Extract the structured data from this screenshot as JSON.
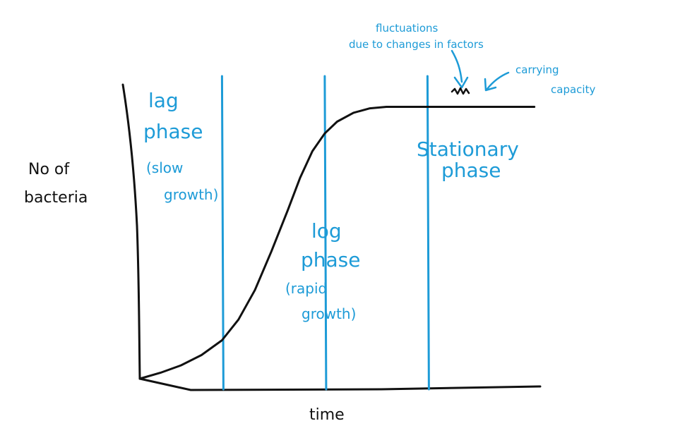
{
  "chart_data": {
    "type": "line",
    "title": "",
    "xlabel": "time",
    "ylabel_line1": "No of",
    "ylabel_line2": "bacteria",
    "grid": false,
    "x_range": [
      0,
      10
    ],
    "y_range": [
      0,
      10
    ],
    "series": [
      {
        "x": [
          0,
          0.5,
          1,
          1.5,
          2,
          2.4,
          2.8,
          3.2,
          3.6,
          3.9,
          4.2,
          4.5,
          4.8,
          5.2,
          5.6,
          6.0,
          6.5,
          7.0,
          7.5,
          8.0,
          8.4,
          9.0,
          9.6
        ],
        "y": [
          0,
          0.2,
          0.45,
          0.8,
          1.3,
          2.0,
          3.0,
          4.3,
          5.7,
          6.8,
          7.7,
          8.3,
          8.7,
          9.0,
          9.15,
          9.2,
          9.2,
          9.2,
          9.2,
          9.2,
          9.2,
          9.2,
          9.2
        ]
      }
    ],
    "phase_dividers_x": [
      2.0,
      4.5,
      7.0
    ],
    "phases": [
      {
        "name_line1": "lag",
        "name_line2": "phase",
        "note_line1": "(slow",
        "note_line2": "growth)"
      },
      {
        "name_line1": "log",
        "name_line2": "phase",
        "note_line1": "(rapid",
        "note_line2": "growth)"
      },
      {
        "name_line1": "Stationary",
        "name_line2": "phase",
        "note_line1": "",
        "note_line2": ""
      }
    ],
    "annotations": {
      "fluctuations_line1": "fluctuations",
      "fluctuations_line2": "due to changes in factors",
      "carrying_capacity_line1": "carrying",
      "carrying_capacity_line2": "capacity"
    },
    "colors": {
      "curve": "#111111",
      "axes": "#111111",
      "dividers": "#1d9bd7",
      "phase_text": "#1d9bd7"
    }
  }
}
